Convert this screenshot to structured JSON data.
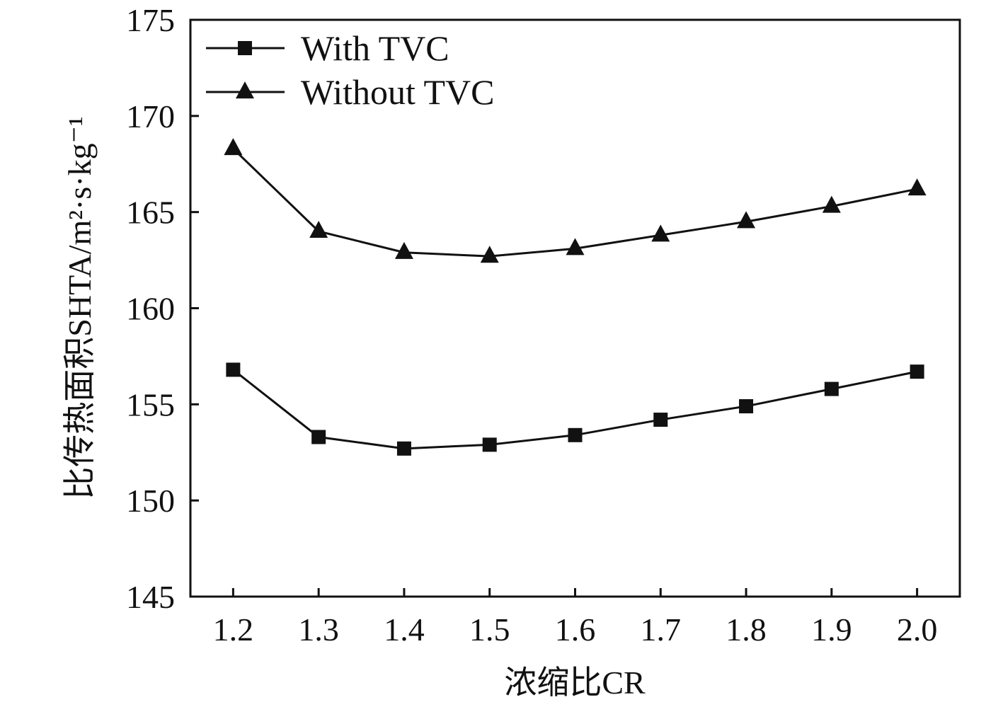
{
  "chart_data": {
    "type": "line",
    "title": "",
    "xlabel": "浓缩比CR",
    "ylabel": "比传热面积SHTA/m²·s·kg⁻¹",
    "x": [
      1.2,
      1.3,
      1.4,
      1.5,
      1.6,
      1.7,
      1.8,
      1.9,
      2.0
    ],
    "x_tick_labels": [
      "1.2",
      "1.3",
      "1.4",
      "1.5",
      "1.6",
      "1.7",
      "1.8",
      "1.9",
      "2.0"
    ],
    "xlim": [
      1.15,
      2.05
    ],
    "ylim": [
      145,
      175
    ],
    "y_ticks": [
      145,
      150,
      155,
      160,
      165,
      170,
      175
    ],
    "y_tick_labels": [
      "145",
      "150",
      "155",
      "160",
      "165",
      "170",
      "175"
    ],
    "legend_position": "top-left",
    "series": [
      {
        "name": "With TVC",
        "marker": "square",
        "values": [
          156.8,
          153.3,
          152.7,
          152.9,
          153.4,
          154.2,
          154.9,
          155.8,
          156.7
        ]
      },
      {
        "name": "Without TVC",
        "marker": "triangle",
        "values": [
          168.3,
          164.0,
          162.9,
          162.7,
          163.1,
          163.8,
          164.5,
          165.3,
          166.2
        ]
      }
    ]
  }
}
